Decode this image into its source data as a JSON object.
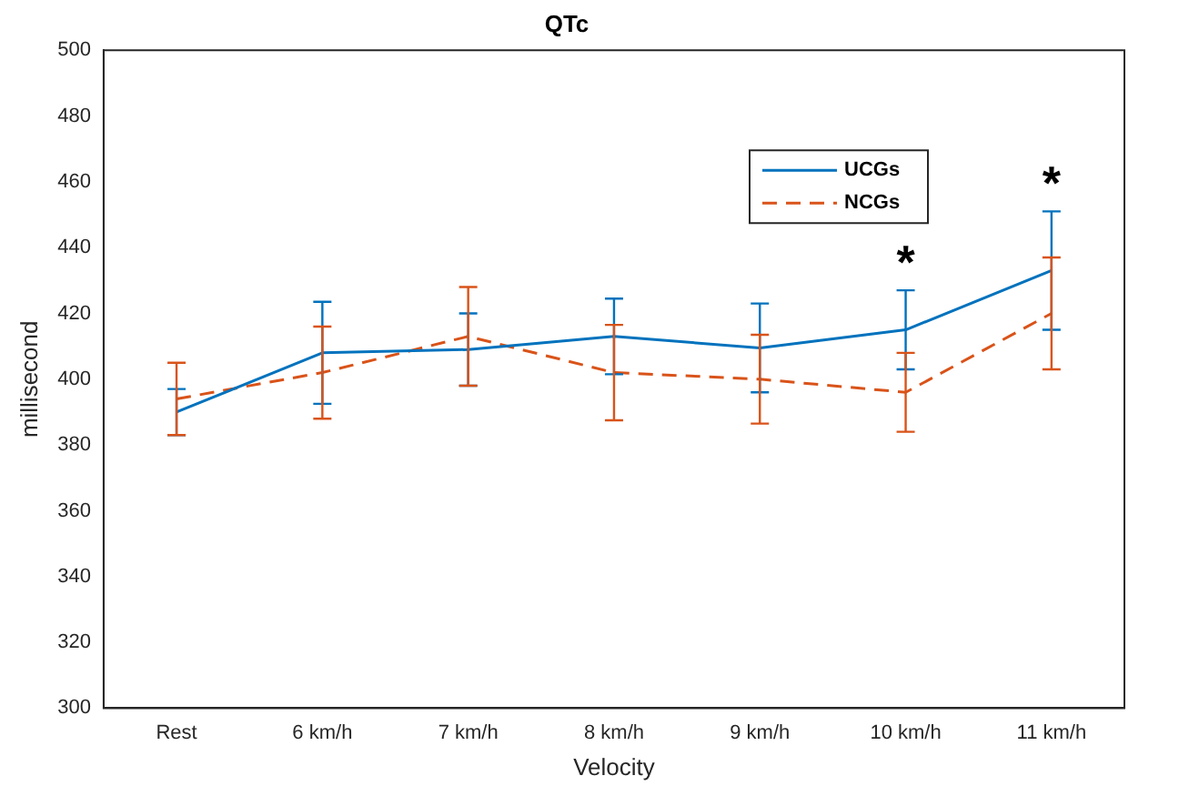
{
  "chart_data": {
    "type": "line",
    "title": "QTc",
    "xlabel": "Velocity",
    "ylabel": "millisecond",
    "categories": [
      "Rest",
      "6 km/h",
      "7 km/h",
      "8 km/h",
      "9 km/h",
      "10 km/h",
      "11 km/h"
    ],
    "series": [
      {
        "name": "UCGs",
        "color": "#0072bd",
        "line_style": "solid",
        "values": [
          390,
          408,
          409,
          413,
          409.5,
          415,
          433
        ],
        "errors": [
          7,
          15.5,
          11,
          11.5,
          13.5,
          12,
          18
        ]
      },
      {
        "name": "NCGs",
        "color": "#d95319",
        "line_style": "dashed",
        "values": [
          394,
          402,
          413,
          402,
          400,
          396,
          420
        ],
        "errors": [
          11,
          14,
          15,
          14.5,
          13.5,
          12,
          17
        ]
      }
    ],
    "ylim": [
      300,
      500
    ],
    "yticks": [
      300,
      320,
      340,
      360,
      380,
      400,
      420,
      440,
      460,
      480,
      500
    ],
    "legend": "top right",
    "grid": false,
    "marker": "none",
    "annotations": [
      {
        "text": "*",
        "x": "10 km/h",
        "y": 427
      },
      {
        "text": "*",
        "x": "11 km/h",
        "y": 451
      }
    ]
  }
}
